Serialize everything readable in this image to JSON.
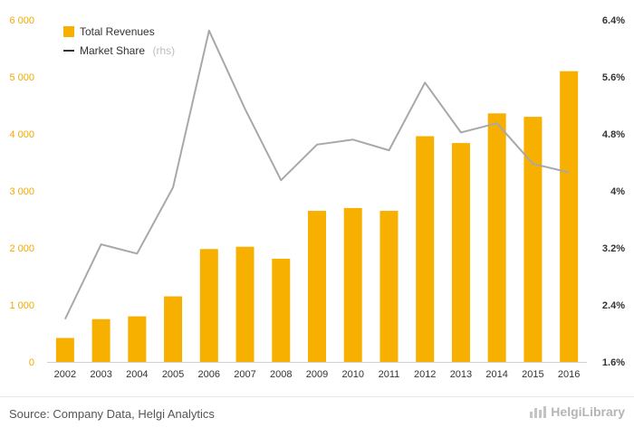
{
  "chart_data": {
    "type": "bar+line",
    "categories": [
      "2002",
      "2003",
      "2004",
      "2005",
      "2006",
      "2007",
      "2008",
      "2009",
      "2010",
      "2011",
      "2012",
      "2013",
      "2014",
      "2015",
      "2016"
    ],
    "series": [
      {
        "name": "Total Revenues",
        "type": "bar",
        "axis": "left",
        "color": "#f7b000",
        "values": [
          420,
          750,
          800,
          1150,
          1980,
          2020,
          1810,
          2650,
          2700,
          2650,
          3960,
          3840,
          4360,
          4300,
          5100
        ]
      },
      {
        "name": "Market Share",
        "type": "line",
        "axis": "right",
        "color": "#a8a8a8",
        "values": [
          2.2,
          3.25,
          3.12,
          4.05,
          6.25,
          5.15,
          4.15,
          4.65,
          4.72,
          4.57,
          5.52,
          4.82,
          4.95,
          4.38,
          4.26
        ]
      }
    ],
    "legend": {
      "items": [
        {
          "label": "Total Revenues",
          "suffix": ""
        },
        {
          "label": "Market Share",
          "suffix": "(rhs)"
        }
      ],
      "position": "top-left"
    },
    "y_left": {
      "ylim": [
        0,
        6000
      ],
      "ticks": [
        0,
        1000,
        2000,
        3000,
        4000,
        5000,
        6000
      ],
      "tick_labels": [
        "0",
        "1 000",
        "2 000",
        "3 000",
        "4 000",
        "5 000",
        "6 000"
      ]
    },
    "y_right": {
      "ylim": [
        1.6,
        6.4
      ],
      "ticks": [
        1.6,
        2.4,
        3.2,
        4.0,
        4.8,
        5.6,
        6.4
      ],
      "tick_labels": [
        "1.6%",
        "2.4%",
        "3.2%",
        "4%",
        "4.8%",
        "5.6%",
        "6.4%"
      ]
    },
    "grid": false
  },
  "footer": {
    "source": "Source: Company Data, Helgi Analytics",
    "logo": "HelgiLibrary"
  }
}
